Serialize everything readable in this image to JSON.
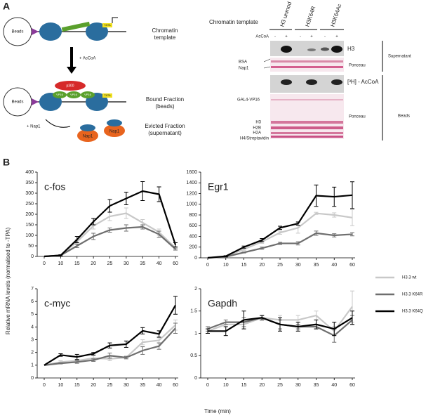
{
  "panel_a": {
    "label": "A",
    "diagram": {
      "beads": "Beads",
      "beads_2": "Beads",
      "tata": "TATA",
      "tata_2": "TATA",
      "p300": "p300",
      "vp16": [
        "VP16",
        "VP16",
        "VP16"
      ],
      "acoa": "+ AcCoA",
      "nap1_add": "+ Nap1",
      "nap1": [
        "Nap1",
        "Nap1"
      ],
      "labels": [
        [
          "Chromatin",
          "template"
        ],
        [
          "Bound Fraction",
          "(beads)"
        ],
        [
          "Evicted Fraction",
          "(supernatant)"
        ]
      ]
    },
    "gel": {
      "header": "Chromatin template",
      "lanes": [
        "H3 unmod",
        "H3K64R",
        "H3K64Ac"
      ],
      "acoa": "AcCoA",
      "signs": [
        "-",
        "+",
        "-",
        "+",
        "-",
        "+"
      ],
      "h3": "H3",
      "bsa": "BSA",
      "nap1": "Nap1",
      "ponceau_1": "Ponceau",
      "supernatant": "Supernatant",
      "tritium": "[³H] - AcCoA",
      "gal4": "GAL4-VP16",
      "ponceau_2": "Ponceau",
      "histones": [
        "H3",
        "H2B",
        "H2A",
        "H4/Streptavidin"
      ],
      "beads": "Beads"
    }
  },
  "panel_b": {
    "label": "B",
    "xlabel": "Time (min)",
    "ylabel": "Relative mRNA levels (normalised to -TPA)"
  },
  "chart_data": [
    {
      "type": "line",
      "title": "c-fos",
      "categories": [
        "0",
        "10",
        "15",
        "20",
        "25",
        "30",
        "35",
        "40",
        "60"
      ],
      "ylim": [
        0,
        400
      ],
      "yticks": [
        0,
        50,
        100,
        150,
        200,
        250,
        300,
        350,
        400
      ],
      "series": [
        {
          "name": "H3.3 wt",
          "color": "#c8c8c8",
          "values": [
            0,
            5,
            70,
            145,
            190,
            205,
            160,
            115,
            40
          ],
          "errors": [
            0,
            3,
            10,
            15,
            20,
            25,
            15,
            15,
            5
          ]
        },
        {
          "name": "H3.3 K64R",
          "color": "#6e6e6e",
          "values": [
            0,
            5,
            50,
            95,
            125,
            135,
            140,
            105,
            35
          ],
          "errors": [
            0,
            2,
            8,
            15,
            10,
            15,
            10,
            15,
            5
          ]
        },
        {
          "name": "H3.3 K64Q",
          "color": "#000000",
          "values": [
            0,
            5,
            80,
            165,
            240,
            275,
            310,
            295,
            55
          ],
          "errors": [
            0,
            3,
            15,
            15,
            30,
            30,
            45,
            35,
            10
          ]
        }
      ]
    },
    {
      "type": "line",
      "title": "Egr1",
      "categories": [
        "0",
        "10",
        "15",
        "20",
        "25",
        "30",
        "35",
        "40",
        "60"
      ],
      "ylim": [
        0,
        1600
      ],
      "yticks": [
        0,
        200,
        400,
        600,
        800,
        1000,
        1200,
        1400,
        1600
      ],
      "series": [
        {
          "name": "H3.3 wt",
          "color": "#c8c8c8",
          "values": [
            0,
            25,
            160,
            300,
            470,
            560,
            830,
            800,
            750
          ],
          "errors": [
            0,
            10,
            20,
            30,
            30,
            100,
            20,
            40,
            150
          ]
        },
        {
          "name": "H3.3 K64R",
          "color": "#6e6e6e",
          "values": [
            0,
            20,
            100,
            180,
            270,
            270,
            460,
            420,
            440
          ],
          "errors": [
            0,
            5,
            10,
            20,
            20,
            30,
            40,
            30,
            30
          ]
        },
        {
          "name": "H3.3 K64Q",
          "color": "#000000",
          "values": [
            0,
            30,
            200,
            330,
            560,
            640,
            1160,
            1140,
            1170
          ],
          "errors": [
            0,
            10,
            20,
            30,
            30,
            30,
            200,
            180,
            250
          ]
        }
      ]
    },
    {
      "type": "line",
      "title": "c-myc",
      "categories": [
        "0",
        "10",
        "15",
        "20",
        "25",
        "30",
        "35",
        "40",
        "60"
      ],
      "ylim": [
        0,
        7
      ],
      "yticks": [
        0,
        1,
        2,
        3,
        4,
        5,
        6,
        7
      ],
      "series": [
        {
          "name": "H3.3 wt",
          "color": "#c8c8c8",
          "values": [
            1,
            1.25,
            1.35,
            1.55,
            1.5,
            1.6,
            2.8,
            2.95,
            4.15
          ],
          "errors": [
            0,
            0.1,
            0.1,
            0.2,
            0.15,
            0.1,
            0.2,
            0.2,
            0.4
          ]
        },
        {
          "name": "H3.3 K64R",
          "color": "#6e6e6e",
          "values": [
            1,
            1.15,
            1.25,
            1.4,
            1.75,
            1.6,
            2.15,
            2.5,
            3.9
          ],
          "errors": [
            0,
            0.05,
            0.1,
            0.1,
            0.2,
            0.1,
            0.3,
            0.25,
            0.4
          ]
        },
        {
          "name": "H3.3 K64Q",
          "color": "#000000",
          "values": [
            1,
            1.8,
            1.65,
            1.9,
            2.55,
            2.65,
            3.7,
            3.45,
            5.7
          ],
          "errors": [
            0,
            0.1,
            0.2,
            0.1,
            0.2,
            0.25,
            0.25,
            0.25,
            0.7
          ]
        }
      ]
    },
    {
      "type": "line",
      "title": "Gapdh",
      "categories": [
        "0",
        "10",
        "15",
        "20",
        "25",
        "30",
        "35",
        "40",
        "60"
      ],
      "ylim": [
        0,
        2
      ],
      "yticks": [
        0,
        0.5,
        1,
        1.5,
        2
      ],
      "series": [
        {
          "name": "H3.3 wt",
          "color": "#c8c8c8",
          "values": [
            1.05,
            1.2,
            1.2,
            1.35,
            1.3,
            1.3,
            1.4,
            1.05,
            1.6
          ],
          "errors": [
            0.05,
            0.05,
            0.1,
            0.05,
            0.1,
            0.1,
            0.1,
            0.1,
            0.35
          ]
        },
        {
          "name": "H3.3 K64R",
          "color": "#6e6e6e",
          "values": [
            1.1,
            1.25,
            1.25,
            1.35,
            1.2,
            1.15,
            1.15,
            0.95,
            1.3
          ],
          "errors": [
            0.05,
            0.05,
            0.1,
            0.05,
            0.1,
            0.05,
            0.05,
            0.15,
            0.1
          ]
        },
        {
          "name": "H3.3 K64Q",
          "color": "#000000",
          "values": [
            1.05,
            1.05,
            1.3,
            1.35,
            1.2,
            1.15,
            1.2,
            1.1,
            1.35
          ],
          "errors": [
            0.05,
            0.1,
            0.2,
            0.05,
            0.15,
            0.1,
            0.1,
            0.15,
            0.15
          ]
        }
      ]
    }
  ]
}
